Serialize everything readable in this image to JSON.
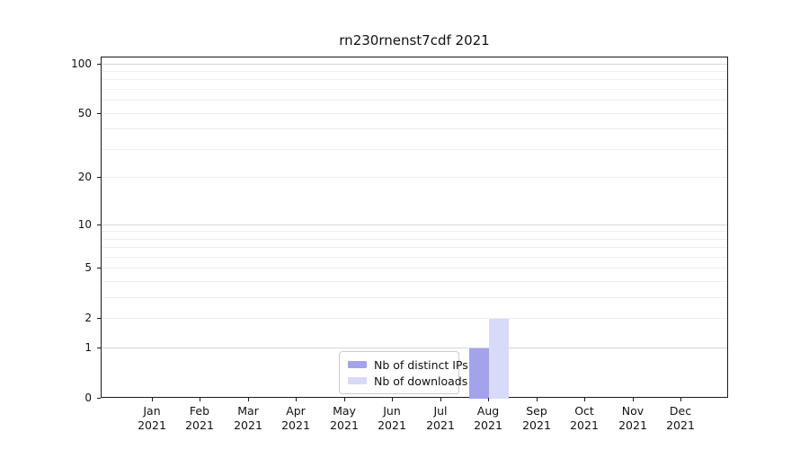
{
  "chart_data": {
    "type": "bar",
    "title": "rn230rnenst7cdf 2021",
    "categories": [
      "Jan",
      "Feb",
      "Mar",
      "Apr",
      "May",
      "Jun",
      "Jul",
      "Aug",
      "Sep",
      "Oct",
      "Nov",
      "Dec"
    ],
    "year_label": "2021",
    "series": [
      {
        "name": "Nb of distinct IPs",
        "color": "#a3a3ec",
        "values": [
          0,
          0,
          0,
          0,
          0,
          0,
          0,
          1,
          0,
          0,
          0,
          0
        ]
      },
      {
        "name": "Nb of downloads",
        "color": "#d9d9f8",
        "values": [
          0,
          0,
          0,
          0,
          0,
          0,
          0,
          2,
          0,
          0,
          0,
          0
        ]
      }
    ],
    "yticks": [
      0,
      1,
      2,
      5,
      10,
      20,
      50,
      100
    ],
    "major_gridlines": [
      1,
      10,
      100
    ],
    "minor_gridlines": [
      2,
      3,
      4,
      5,
      6,
      7,
      8,
      9,
      20,
      30,
      40,
      50,
      60,
      70,
      80,
      90
    ],
    "scale": "log1p",
    "ylim": [
      0,
      110
    ],
    "xlabel": "",
    "ylabel": "",
    "legend_position": "lower-center",
    "colors": {
      "grid_major": "#d6d6d6",
      "grid_minor": "#eeeeee",
      "spine": "#1a1a1a",
      "text": "#111111"
    }
  }
}
